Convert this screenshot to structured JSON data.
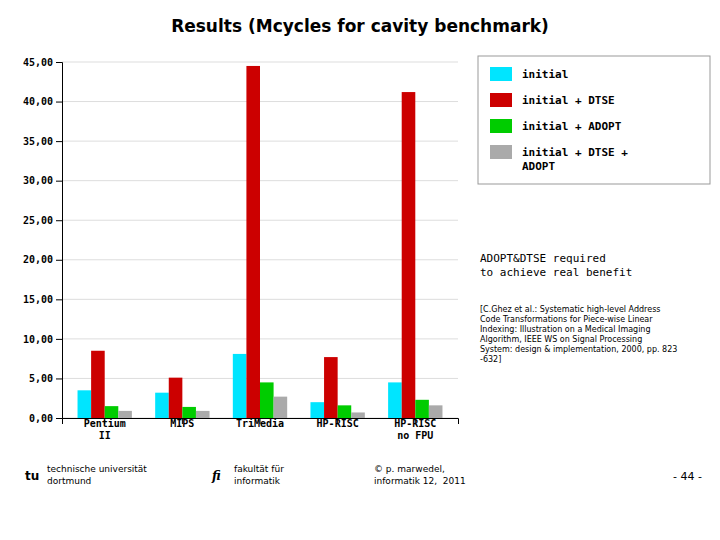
{
  "chart_data": {
    "type": "bar",
    "title": "Results (Mcycles for cavity benchmark)",
    "categories": [
      "Pentium\nII",
      "MIPS",
      "TriMedia",
      "HP-RISC",
      "HP-RISC\nno FPU"
    ],
    "series": [
      {
        "name": "initial",
        "color": "#00E5FF",
        "values": [
          3.5,
          3.2,
          8.1,
          2.0,
          4.5
        ]
      },
      {
        "name": "initial + DTSE",
        "color": "#CC0000",
        "values": [
          8.5,
          5.1,
          44.5,
          7.7,
          41.2
        ]
      },
      {
        "name": "initial + ADOPT",
        "color": "#00CC00",
        "values": [
          1.5,
          1.4,
          4.5,
          1.6,
          2.3
        ]
      },
      {
        "name": "initial + DTSE +\nADOPT",
        "color": "#AAAAAA",
        "values": [
          0.9,
          0.9,
          2.7,
          0.7,
          1.6
        ]
      }
    ],
    "ylim": [
      0,
      45
    ],
    "yticks": [
      {
        "value": 0,
        "label": "0,00"
      },
      {
        "value": 5,
        "label": "5,00"
      },
      {
        "value": 10,
        "label": "10,00"
      },
      {
        "value": 15,
        "label": "15,00"
      },
      {
        "value": 20,
        "label": "20,00"
      },
      {
        "value": 25,
        "label": "25,00"
      },
      {
        "value": 30,
        "label": "30,00"
      },
      {
        "value": 35,
        "label": "35,00"
      },
      {
        "value": 40,
        "label": "40,00"
      },
      {
        "value": 45,
        "label": "45,00"
      }
    ],
    "grid": true,
    "legend": "upper right",
    "annotations": [
      "ADOPT&DTSE required\nto achieve real benefit",
      "[C.Ghez et al.: Systematic high-level Address\nCode Transformations for Piece-wise Linear\nIndexing: Illustration on a Medical Imaging\nAlgorithm, IEEE WS on Signal Processing\nSystem: design & implementation, 2000, pp. 823\n-632]"
    ],
    "footer": [
      "tu",
      "technische universität",
      "dortmund",
      "fi",
      "fakultät für",
      "informatik",
      "© p. marwedel,",
      "informatik 12,  2011",
      "- 44 -"
    ]
  }
}
